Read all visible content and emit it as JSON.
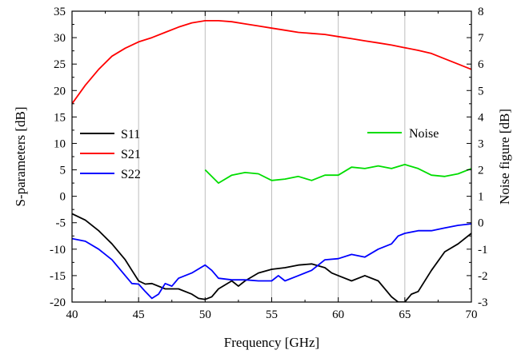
{
  "chart_data": {
    "type": "line",
    "xlabel": "Frequency [GHz]",
    "ylabel_left": "S-parameters [dB]",
    "ylabel_right": "Noise figure [dB]",
    "xlim": [
      40,
      70
    ],
    "ylim_left": [
      -20,
      35
    ],
    "ylim_right": [
      -3,
      8
    ],
    "x_ticks": [
      40,
      45,
      50,
      55,
      60,
      65,
      70
    ],
    "y_ticks_left": [
      -20,
      -15,
      -10,
      -5,
      0,
      5,
      10,
      15,
      20,
      25,
      30,
      35
    ],
    "y_ticks_right": [
      -3,
      -2,
      -1,
      0,
      1,
      2,
      3,
      4,
      5,
      6,
      7,
      8
    ],
    "grid": "vertical",
    "legend_left": {
      "placement": "left",
      "entries": [
        "S11",
        "S21",
        "S22"
      ]
    },
    "legend_right": {
      "placement": "top-right",
      "entries": [
        "Noise"
      ]
    },
    "series": [
      {
        "name": "S11",
        "axis": "left",
        "color": "#000000",
        "points": [
          [
            40,
            -3.3
          ],
          [
            41,
            -4.5
          ],
          [
            42,
            -6.5
          ],
          [
            43,
            -9
          ],
          [
            44,
            -12
          ],
          [
            44.5,
            -14
          ],
          [
            45,
            -16
          ],
          [
            45.5,
            -16.6
          ],
          [
            46,
            -16.5
          ],
          [
            47,
            -17.5
          ],
          [
            48,
            -17.5
          ],
          [
            49,
            -18.5
          ],
          [
            49.5,
            -19.3
          ],
          [
            50,
            -19.5
          ],
          [
            50.5,
            -19
          ],
          [
            51,
            -17.5
          ],
          [
            52,
            -16
          ],
          [
            52.5,
            -17
          ],
          [
            53,
            -16
          ],
          [
            54,
            -14.5
          ],
          [
            55,
            -13.8
          ],
          [
            56,
            -13.5
          ],
          [
            57,
            -13
          ],
          [
            58,
            -12.8
          ],
          [
            59,
            -13.5
          ],
          [
            59.5,
            -14.5
          ],
          [
            60,
            -15
          ],
          [
            61,
            -16
          ],
          [
            62,
            -15
          ],
          [
            63,
            -16
          ],
          [
            64,
            -19
          ],
          [
            64.5,
            -20
          ],
          [
            65,
            -20
          ],
          [
            65.5,
            -18.5
          ],
          [
            66,
            -18
          ],
          [
            67,
            -14
          ],
          [
            68,
            -10.5
          ],
          [
            69,
            -9
          ],
          [
            70,
            -7
          ]
        ]
      },
      {
        "name": "S21",
        "axis": "left",
        "color": "#ff0000",
        "points": [
          [
            40,
            17.5
          ],
          [
            41,
            21
          ],
          [
            42,
            24
          ],
          [
            43,
            26.5
          ],
          [
            44,
            28
          ],
          [
            45,
            29.2
          ],
          [
            46,
            30
          ],
          [
            47,
            31
          ],
          [
            48,
            32
          ],
          [
            49,
            32.8
          ],
          [
            50,
            33.2
          ],
          [
            51,
            33.2
          ],
          [
            52,
            33
          ],
          [
            53,
            32.6
          ],
          [
            54,
            32.2
          ],
          [
            55,
            31.8
          ],
          [
            56,
            31.4
          ],
          [
            57,
            31
          ],
          [
            58,
            30.8
          ],
          [
            59,
            30.6
          ],
          [
            60,
            30.2
          ],
          [
            61,
            29.8
          ],
          [
            62,
            29.4
          ],
          [
            63,
            29
          ],
          [
            64,
            28.6
          ],
          [
            65,
            28.1
          ],
          [
            66,
            27.6
          ],
          [
            67,
            27
          ],
          [
            68,
            26
          ],
          [
            69,
            25
          ],
          [
            70,
            24
          ]
        ]
      },
      {
        "name": "S22",
        "axis": "left",
        "color": "#0000ff",
        "points": [
          [
            40,
            -8
          ],
          [
            41,
            -8.5
          ],
          [
            42,
            -10
          ],
          [
            43,
            -12
          ],
          [
            44,
            -15
          ],
          [
            44.5,
            -16.5
          ],
          [
            45,
            -16.6
          ],
          [
            45.5,
            -18
          ],
          [
            46,
            -19.3
          ],
          [
            46.5,
            -18.5
          ],
          [
            47,
            -16.5
          ],
          [
            47.5,
            -17
          ],
          [
            48,
            -15.5
          ],
          [
            49,
            -14.5
          ],
          [
            50,
            -13
          ],
          [
            50.5,
            -14
          ],
          [
            51,
            -15.5
          ],
          [
            52,
            -15.8
          ],
          [
            53,
            -15.8
          ],
          [
            54,
            -16
          ],
          [
            55,
            -16
          ],
          [
            55.5,
            -15
          ],
          [
            56,
            -16
          ],
          [
            57,
            -15
          ],
          [
            58,
            -14
          ],
          [
            59,
            -12
          ],
          [
            60,
            -11.8
          ],
          [
            61,
            -11
          ],
          [
            62,
            -11.5
          ],
          [
            63,
            -10
          ],
          [
            64,
            -9
          ],
          [
            64.5,
            -7.5
          ],
          [
            65,
            -7
          ],
          [
            66,
            -6.5
          ],
          [
            67,
            -6.5
          ],
          [
            68,
            -6
          ],
          [
            69,
            -5.5
          ],
          [
            70,
            -5.2
          ]
        ]
      },
      {
        "name": "Noise",
        "axis": "right",
        "color": "#00dd00",
        "points": [
          [
            50,
            2
          ],
          [
            51,
            1.5
          ],
          [
            52,
            1.8
          ],
          [
            53,
            1.9
          ],
          [
            54,
            1.85
          ],
          [
            55,
            1.6
          ],
          [
            56,
            1.65
          ],
          [
            57,
            1.75
          ],
          [
            58,
            1.6
          ],
          [
            59,
            1.8
          ],
          [
            60,
            1.8
          ],
          [
            61,
            2.1
          ],
          [
            62,
            2.05
          ],
          [
            63,
            2.15
          ],
          [
            64,
            2.05
          ],
          [
            65,
            2.2
          ],
          [
            66,
            2.05
          ],
          [
            67,
            1.8
          ],
          [
            68,
            1.75
          ],
          [
            69,
            1.85
          ],
          [
            70,
            2.05
          ]
        ]
      }
    ]
  }
}
